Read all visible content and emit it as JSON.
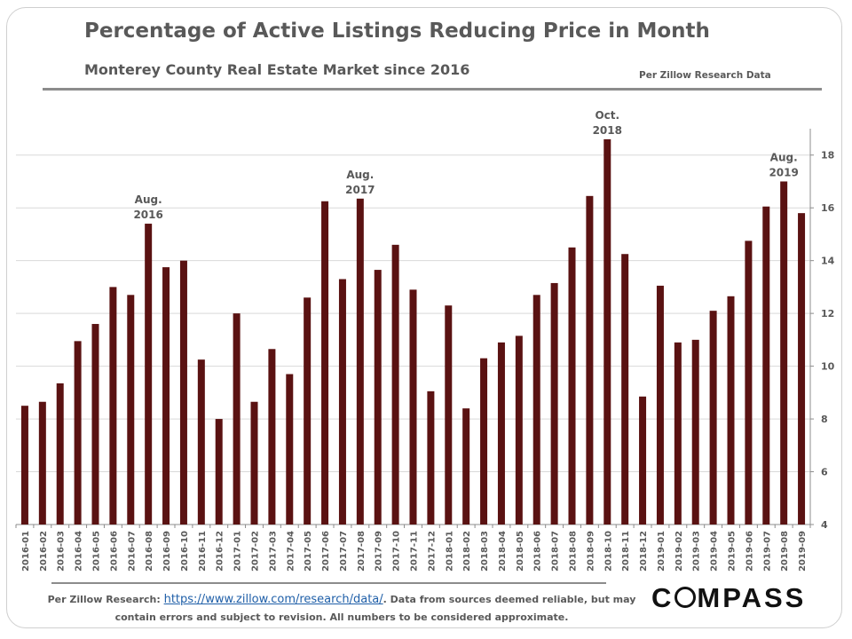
{
  "title": "Percentage of Active Listings Reducing Price in Month",
  "subtitle": "Monterey County Real Estate Market since 2016",
  "source_note": "Per Zillow Research Data",
  "footer": {
    "prefix": "Per Zillow Research:",
    "link": "https://www.zillow.com/research/data/",
    "text_after_link": ". Data from sources deemed reliable, but may",
    "line2": "contain errors and subject to revision.  All numbers to be considered approximate."
  },
  "logo": {
    "before_o": "C",
    "after_o": "MPASS"
  },
  "colors": {
    "bar": "#5a1212",
    "grid": "#d9d9d9",
    "text": "#595959"
  },
  "chart_data": {
    "type": "bar",
    "categories": [
      "2016-01",
      "2016-02",
      "2016-03",
      "2016-04",
      "2016-05",
      "2016-06",
      "2016-07",
      "2016-08",
      "2016-09",
      "2016-10",
      "2016-11",
      "2016-12",
      "2017-01",
      "2017-02",
      "2017-03",
      "2017-04",
      "2017-05",
      "2017-06",
      "2017-07",
      "2017-08",
      "2017-09",
      "2017-10",
      "2017-11",
      "2017-12",
      "2018-01",
      "2018-02",
      "2018-03",
      "2018-04",
      "2018-05",
      "2018-06",
      "2018-07",
      "2018-08",
      "2018-09",
      "2018-10",
      "2018-11",
      "2018-12",
      "2019-01",
      "2019-02",
      "2019-03",
      "2019-04",
      "2019-05",
      "2019-06",
      "2019-07",
      "2019-08",
      "2019-09"
    ],
    "values": [
      8.5,
      8.65,
      9.35,
      10.95,
      11.6,
      13.0,
      12.7,
      15.4,
      13.75,
      14.0,
      10.25,
      8.0,
      12.0,
      8.65,
      10.65,
      9.7,
      12.6,
      16.25,
      13.3,
      16.35,
      13.65,
      14.6,
      12.9,
      9.05,
      12.3,
      8.4,
      10.3,
      10.9,
      11.15,
      12.7,
      13.15,
      14.5,
      16.45,
      18.6,
      14.25,
      8.85,
      13.05,
      10.9,
      11.0,
      12.1,
      12.65,
      14.75,
      16.05,
      17.0,
      15.8
    ],
    "ylim": [
      4,
      19
    ],
    "yticks": [
      4,
      6,
      8,
      10,
      12,
      14,
      16,
      18
    ],
    "y_axis_side": "right",
    "grid": true,
    "annotations": [
      {
        "category": "2016-08",
        "lines": [
          "Aug.",
          "2016"
        ]
      },
      {
        "category": "2017-08",
        "lines": [
          "Aug.",
          "2017"
        ]
      },
      {
        "category": "2018-10",
        "lines": [
          "Oct.",
          "2018"
        ]
      },
      {
        "category": "2019-08",
        "lines": [
          "Aug.",
          "2019"
        ]
      }
    ]
  }
}
